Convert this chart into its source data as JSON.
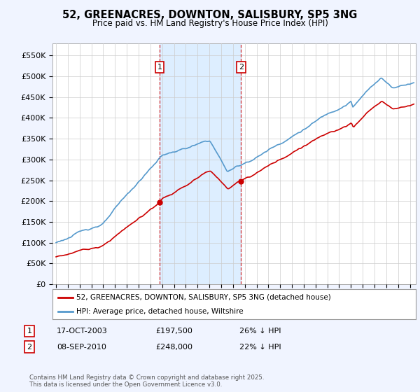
{
  "title": "52, GREENACRES, DOWNTON, SALISBURY, SP5 3NG",
  "subtitle": "Price paid vs. HM Land Registry's House Price Index (HPI)",
  "legend_label_red": "52, GREENACRES, DOWNTON, SALISBURY, SP5 3NG (detached house)",
  "legend_label_blue": "HPI: Average price, detached house, Wiltshire",
  "annotation1_label": "1",
  "annotation1_date": "17-OCT-2003",
  "annotation1_price": "£197,500",
  "annotation1_hpi": "26% ↓ HPI",
  "annotation1_year": 2003.79,
  "annotation1_value": 197500,
  "annotation2_label": "2",
  "annotation2_date": "08-SEP-2010",
  "annotation2_price": "£248,000",
  "annotation2_hpi": "22% ↓ HPI",
  "annotation2_year": 2010.69,
  "annotation2_value": 248000,
  "footer": "Contains HM Land Registry data © Crown copyright and database right 2025.\nThis data is licensed under the Open Government Licence v3.0.",
  "red_color": "#cc0000",
  "blue_color": "#5599cc",
  "shade_color": "#ddeeff",
  "background_color": "#f0f4ff",
  "plot_bg_color": "#ffffff",
  "ylim": [
    0,
    580000
  ],
  "yticks": [
    0,
    50000,
    100000,
    150000,
    200000,
    250000,
    300000,
    350000,
    400000,
    450000,
    500000,
    550000
  ],
  "xlim": [
    1994.7,
    2025.5
  ],
  "xticks": [
    1995,
    1996,
    1997,
    1998,
    1999,
    2000,
    2001,
    2002,
    2003,
    2004,
    2005,
    2006,
    2007,
    2008,
    2009,
    2010,
    2011,
    2012,
    2013,
    2014,
    2015,
    2016,
    2017,
    2018,
    2019,
    2020,
    2021,
    2022,
    2023,
    2024,
    2025
  ]
}
